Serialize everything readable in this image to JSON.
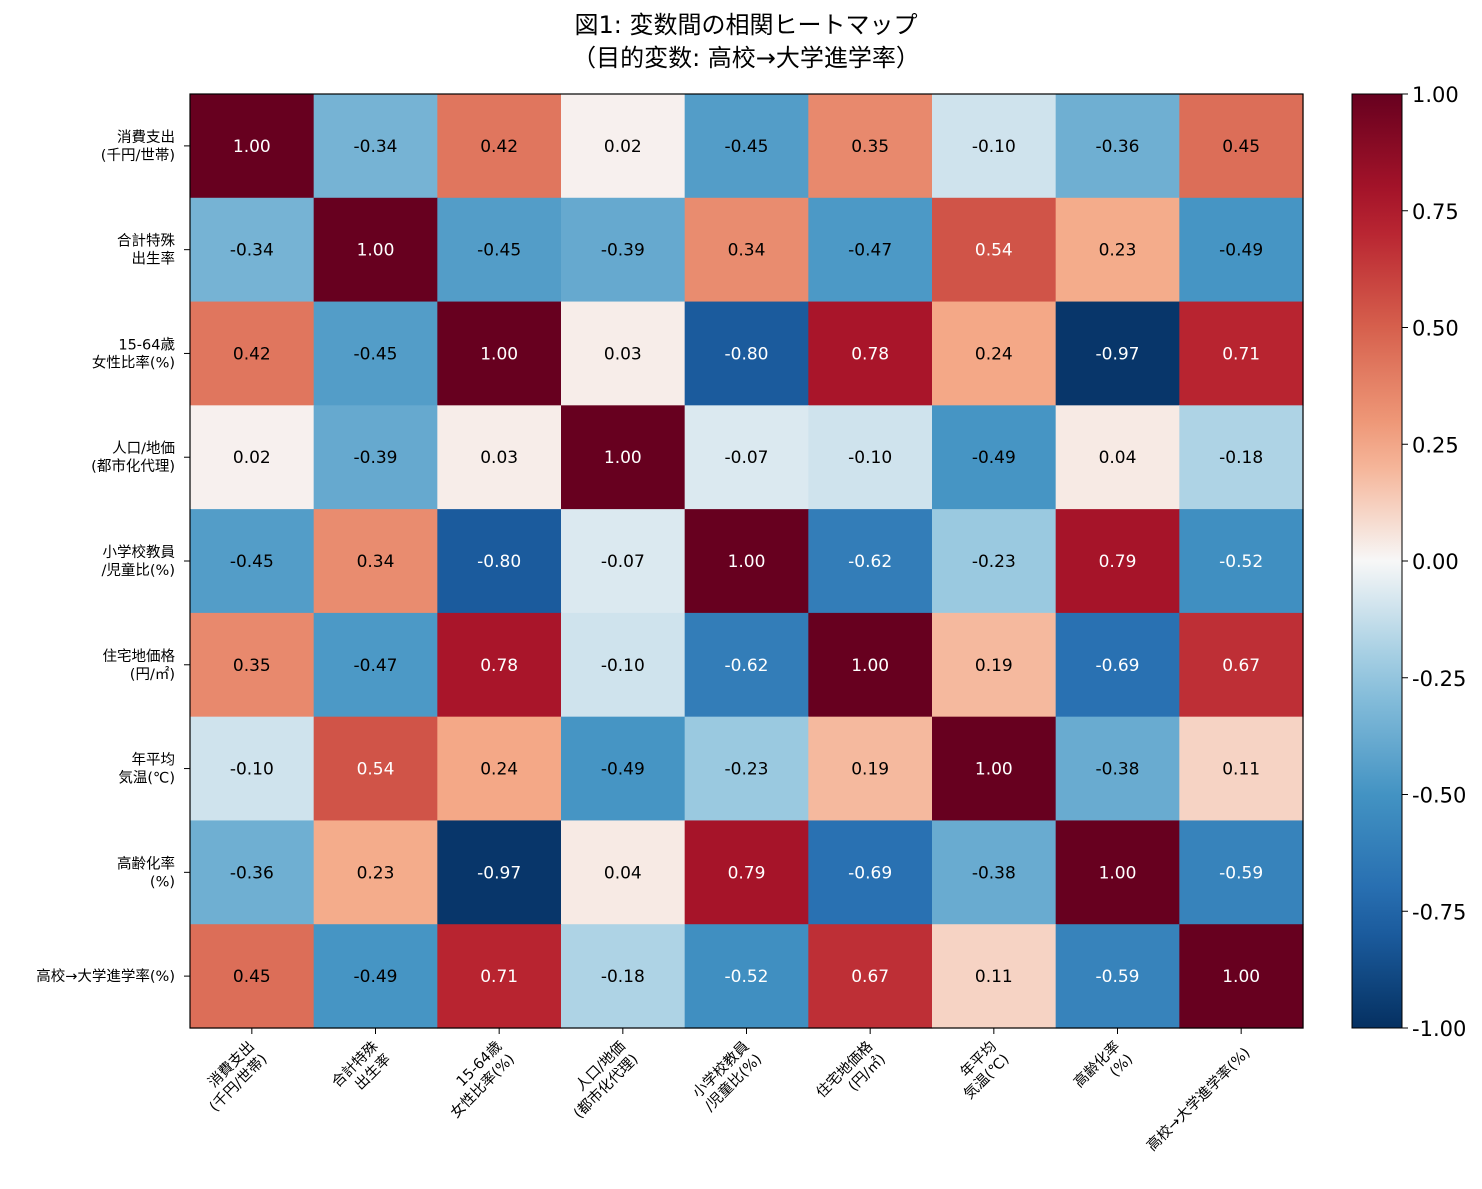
{
  "chart_data": {
    "type": "heatmap",
    "title_line1": "図1: 変数間の相関ヒートマップ",
    "title_line2": "（目的変数: 高校→大学進学率）",
    "labels": [
      [
        "消費支出",
        "(千円/世帯)"
      ],
      [
        "合計特殊",
        "出生率"
      ],
      [
        "15-64歳",
        "女性比率(%)"
      ],
      [
        "人口/地価",
        "(都市化代理)"
      ],
      [
        "小学校教員",
        "/児童比(%)"
      ],
      [
        "住宅地価格",
        "(円/㎡)"
      ],
      [
        "年平均",
        "気温(℃)"
      ],
      [
        "高齢化率",
        "(%)"
      ],
      [
        "高校→大学進学率(%)"
      ]
    ],
    "matrix": [
      [
        1.0,
        -0.34,
        0.42,
        0.02,
        -0.45,
        0.35,
        -0.1,
        -0.36,
        0.45
      ],
      [
        -0.34,
        1.0,
        -0.45,
        -0.39,
        0.34,
        -0.47,
        0.54,
        0.23,
        -0.49
      ],
      [
        0.42,
        -0.45,
        1.0,
        0.03,
        -0.8,
        0.78,
        0.24,
        -0.97,
        0.71
      ],
      [
        0.02,
        -0.39,
        0.03,
        1.0,
        -0.07,
        -0.1,
        -0.49,
        0.04,
        -0.18
      ],
      [
        -0.45,
        0.34,
        -0.8,
        -0.07,
        1.0,
        -0.62,
        -0.23,
        0.79,
        -0.52
      ],
      [
        0.35,
        -0.47,
        0.78,
        -0.1,
        -0.62,
        1.0,
        0.19,
        -0.69,
        0.67
      ],
      [
        -0.1,
        0.54,
        0.24,
        -0.49,
        -0.23,
        0.19,
        1.0,
        -0.38,
        0.11
      ],
      [
        -0.36,
        0.23,
        -0.97,
        0.04,
        0.79,
        -0.69,
        -0.38,
        1.0,
        -0.59
      ],
      [
        0.45,
        -0.49,
        0.71,
        -0.18,
        -0.52,
        0.67,
        0.11,
        -0.59,
        1.0
      ]
    ],
    "value_range": [
      -1.0,
      1.0
    ],
    "colormap": "RdBu_r",
    "colorbar_ticks": [
      "1.00",
      "0.75",
      "0.50",
      "0.25",
      "0.00",
      "-0.25",
      "-0.50",
      "-0.75",
      "-1.00"
    ],
    "colorbar_tick_values": [
      1.0,
      0.75,
      0.5,
      0.25,
      0.0,
      -0.25,
      -0.5,
      -0.75,
      -1.0
    ],
    "grid": false
  }
}
